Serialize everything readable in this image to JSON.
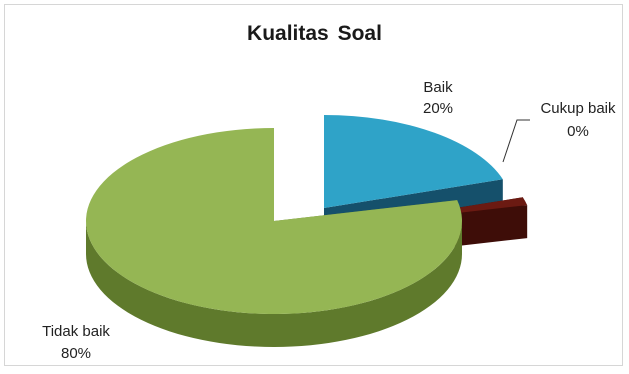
{
  "chart_data": {
    "type": "pie",
    "title": "Kualitas Soal",
    "style": "3d-exploded",
    "start_angle_deg": 0,
    "direction": "clockwise",
    "slices": [
      {
        "label": "Baik",
        "value": 20,
        "percent_label": "20%",
        "color": "#2fa3c8",
        "side_color": "#15506b",
        "exploded": true
      },
      {
        "label": "Cukup baik",
        "value": 0,
        "percent_label": "0%",
        "color": "#6b1a12",
        "side_color": "#3e0d08",
        "exploded": true
      },
      {
        "label": "Tidak baik",
        "value": 80,
        "percent_label": "80%",
        "color": "#95b654",
        "side_color": "#5f7a2c",
        "exploded": false
      }
    ]
  }
}
